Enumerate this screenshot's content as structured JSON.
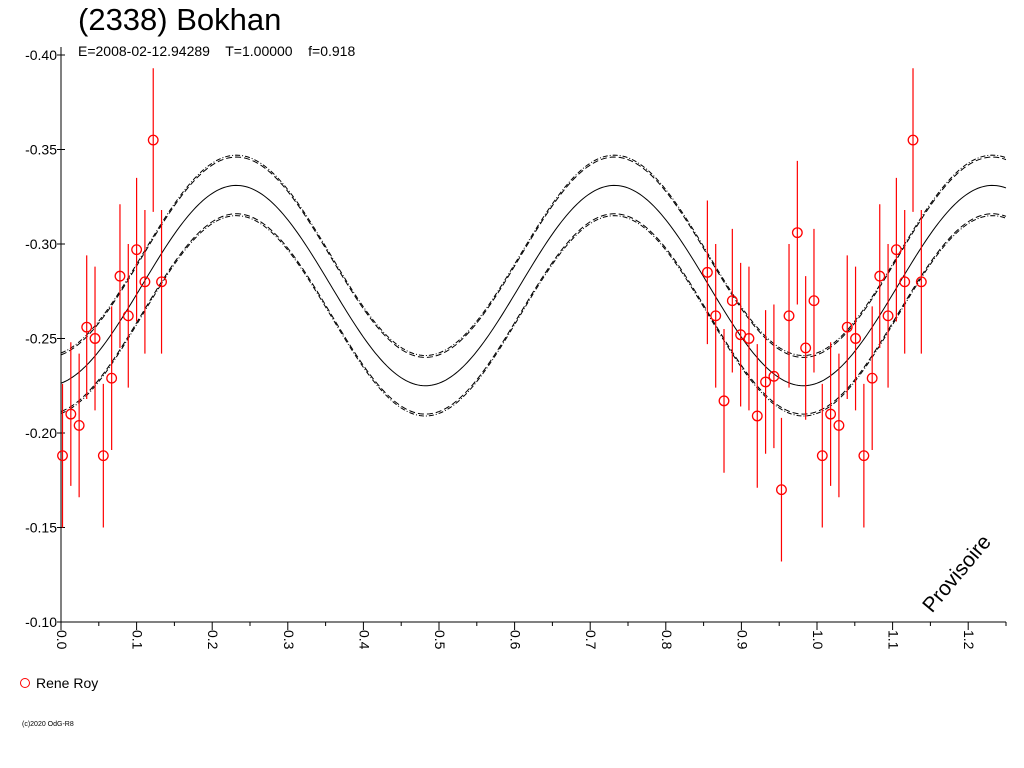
{
  "title": "(2338) Bokhan",
  "subtitle": "E=2008-02-12.94289    T=1.00000    f=0.918",
  "watermark": "Provisoire",
  "legend": {
    "label": "Rene Roy",
    "color": "#ff0000"
  },
  "copyright": "(c)2020 OdG-R8",
  "chart_data": {
    "type": "scatter",
    "title": "(2338) Bokhan",
    "xlabel": "",
    "ylabel": "",
    "xlim": [
      0.0,
      1.25
    ],
    "ylim": [
      -0.4,
      -0.1
    ],
    "y_inverted": true,
    "grid": false,
    "legend_position": "bottom-left",
    "x_ticks": [
      "0.0",
      "0.1",
      "0.2",
      "0.3",
      "0.4",
      "0.5",
      "0.6",
      "0.7",
      "0.8",
      "0.9",
      "1.0",
      "1.1",
      "1.2"
    ],
    "y_ticks": [
      "-0.40",
      "-0.35",
      "-0.30",
      "-0.25",
      "-0.20",
      "-0.15",
      "-0.10"
    ],
    "fit": {
      "period_phase": 0.5,
      "mean": -0.278,
      "amplitude": 0.053,
      "peak_phase": 0.232,
      "band_offsets": [
        0.015,
        0.016
      ]
    },
    "series": [
      {
        "name": "Rene Roy",
        "color": "#ff0000",
        "marker": "open-circle",
        "points": [
          {
            "x": 0.002,
            "y": -0.188,
            "err": 0.038
          },
          {
            "x": 0.013,
            "y": -0.21,
            "err": 0.038
          },
          {
            "x": 0.024,
            "y": -0.204,
            "err": 0.038
          },
          {
            "x": 0.034,
            "y": -0.256,
            "err": 0.038
          },
          {
            "x": 0.045,
            "y": -0.25,
            "err": 0.038
          },
          {
            "x": 0.056,
            "y": -0.188,
            "err": 0.038
          },
          {
            "x": 0.067,
            "y": -0.229,
            "err": 0.038
          },
          {
            "x": 0.078,
            "y": -0.283,
            "err": 0.038
          },
          {
            "x": 0.089,
            "y": -0.262,
            "err": 0.038
          },
          {
            "x": 0.1,
            "y": -0.297,
            "err": 0.038
          },
          {
            "x": 0.111,
            "y": -0.28,
            "err": 0.038
          },
          {
            "x": 0.122,
            "y": -0.355,
            "err": 0.038
          },
          {
            "x": 0.133,
            "y": -0.28,
            "err": 0.038
          },
          {
            "x": 0.855,
            "y": -0.285,
            "err": 0.038
          },
          {
            "x": 0.866,
            "y": -0.262,
            "err": 0.038
          },
          {
            "x": 0.877,
            "y": -0.217,
            "err": 0.038
          },
          {
            "x": 0.888,
            "y": -0.27,
            "err": 0.038
          },
          {
            "x": 0.899,
            "y": -0.252,
            "err": 0.038
          },
          {
            "x": 0.91,
            "y": -0.25,
            "err": 0.038
          },
          {
            "x": 0.921,
            "y": -0.209,
            "err": 0.038
          },
          {
            "x": 0.932,
            "y": -0.227,
            "err": 0.038
          },
          {
            "x": 0.943,
            "y": -0.23,
            "err": 0.038
          },
          {
            "x": 0.953,
            "y": -0.17,
            "err": 0.038
          },
          {
            "x": 0.963,
            "y": -0.262,
            "err": 0.038
          },
          {
            "x": 0.974,
            "y": -0.306,
            "err": 0.038
          },
          {
            "x": 0.985,
            "y": -0.245,
            "err": 0.038
          },
          {
            "x": 0.996,
            "y": -0.27,
            "err": 0.038
          },
          {
            "x": 1.007,
            "y": -0.188,
            "err": 0.038
          },
          {
            "x": 1.018,
            "y": -0.21,
            "err": 0.038
          },
          {
            "x": 1.029,
            "y": -0.204,
            "err": 0.038
          },
          {
            "x": 1.04,
            "y": -0.256,
            "err": 0.038
          },
          {
            "x": 1.051,
            "y": -0.25,
            "err": 0.038
          },
          {
            "x": 1.062,
            "y": -0.188,
            "err": 0.038
          },
          {
            "x": 1.073,
            "y": -0.229,
            "err": 0.038
          },
          {
            "x": 1.083,
            "y": -0.283,
            "err": 0.038
          },
          {
            "x": 1.094,
            "y": -0.262,
            "err": 0.038
          },
          {
            "x": 1.105,
            "y": -0.297,
            "err": 0.038
          },
          {
            "x": 1.116,
            "y": -0.28,
            "err": 0.038
          },
          {
            "x": 1.127,
            "y": -0.355,
            "err": 0.038
          },
          {
            "x": 1.138,
            "y": -0.28,
            "err": 0.038
          }
        ]
      }
    ]
  }
}
